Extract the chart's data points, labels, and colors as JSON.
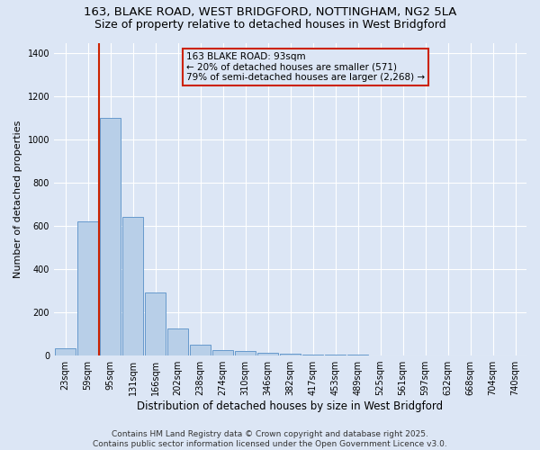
{
  "title_line1": "163, BLAKE ROAD, WEST BRIDGFORD, NOTTINGHAM, NG2 5LA",
  "title_line2": "Size of property relative to detached houses in West Bridgford",
  "xlabel": "Distribution of detached houses by size in West Bridgford",
  "ylabel": "Number of detached properties",
  "categories": [
    "23sqm",
    "59sqm",
    "95sqm",
    "131sqm",
    "166sqm",
    "202sqm",
    "238sqm",
    "274sqm",
    "310sqm",
    "346sqm",
    "382sqm",
    "417sqm",
    "453sqm",
    "489sqm",
    "525sqm",
    "561sqm",
    "597sqm",
    "632sqm",
    "668sqm",
    "704sqm",
    "740sqm"
  ],
  "values": [
    30,
    620,
    1100,
    640,
    290,
    125,
    48,
    25,
    20,
    10,
    5,
    2,
    1,
    1,
    0,
    0,
    0,
    0,
    0,
    0,
    0
  ],
  "bar_color": "#b8cfe8",
  "bar_edge_color": "#6699cc",
  "background_color": "#dce6f5",
  "grid_color": "#ffffff",
  "vline_color": "#cc2200",
  "vline_x_index": 1.5,
  "annotation_text": "163 BLAKE ROAD: 93sqm\n← 20% of detached houses are smaller (571)\n79% of semi-detached houses are larger (2,268) →",
  "annotation_box_color": "#cc2200",
  "ylim": [
    0,
    1450
  ],
  "yticks": [
    0,
    200,
    400,
    600,
    800,
    1000,
    1200,
    1400
  ],
  "footer_line1": "Contains HM Land Registry data © Crown copyright and database right 2025.",
  "footer_line2": "Contains public sector information licensed under the Open Government Licence v3.0.",
  "title_fontsize": 9.5,
  "ylabel_fontsize": 8,
  "xlabel_fontsize": 8.5,
  "tick_fontsize": 7,
  "footer_fontsize": 6.5,
  "annot_fontsize": 7.5
}
